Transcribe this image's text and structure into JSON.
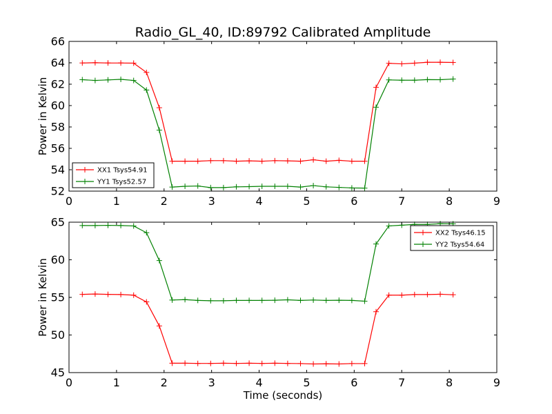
{
  "chart_data": {
    "title": "Radio_GL_40, ID:89792 Calibrated Amplitude",
    "xlabel": "Time (seconds)",
    "colors": {
      "red": "#ff0000",
      "green": "#008000"
    },
    "panels": [
      {
        "type": "line",
        "ylabel": "Power in Kelvin",
        "xlim": [
          0,
          9
        ],
        "ylim": [
          52,
          66
        ],
        "xticks": [
          "0",
          "1",
          "2",
          "3",
          "4",
          "5",
          "6",
          "7",
          "8",
          "9"
        ],
        "yticks": [
          "52",
          "54",
          "56",
          "58",
          "60",
          "62",
          "64",
          "66"
        ],
        "legend_position": "lower-left",
        "x": [
          0.28,
          0.55,
          0.82,
          1.09,
          1.36,
          1.63,
          1.9,
          2.17,
          2.44,
          2.71,
          2.98,
          3.25,
          3.52,
          3.79,
          4.06,
          4.33,
          4.6,
          4.87,
          5.14,
          5.41,
          5.68,
          5.95,
          6.22,
          6.46,
          6.73,
          7.0,
          7.27,
          7.54,
          7.81,
          8.08
        ],
        "series": [
          {
            "name": "XX1 Tsys54.91",
            "color": "#ff0000",
            "values": [
              63.98,
              64.01,
              63.98,
              63.98,
              63.97,
              63.1,
              59.8,
              54.8,
              54.8,
              54.8,
              54.85,
              54.85,
              54.8,
              54.83,
              54.8,
              54.85,
              54.83,
              54.8,
              54.93,
              54.8,
              54.88,
              54.8,
              54.8,
              61.7,
              63.95,
              63.9,
              63.97,
              64.05,
              64.05,
              64.03
            ]
          },
          {
            "name": "YY1 Tsys52.57",
            "color": "#008000",
            "values": [
              62.42,
              62.35,
              62.4,
              62.45,
              62.35,
              61.45,
              57.7,
              52.38,
              52.45,
              52.48,
              52.33,
              52.33,
              52.4,
              52.42,
              52.45,
              52.45,
              52.45,
              52.38,
              52.52,
              52.4,
              52.35,
              52.3,
              52.28,
              59.85,
              62.4,
              62.37,
              62.37,
              62.43,
              62.42,
              62.48
            ]
          }
        ]
      },
      {
        "type": "line",
        "ylabel": "Power in Kelvin",
        "xlabel": "Time (seconds)",
        "xlim": [
          0,
          9
        ],
        "ylim": [
          45,
          65
        ],
        "xticks": [
          "0",
          "1",
          "2",
          "3",
          "4",
          "5",
          "6",
          "7",
          "8",
          "9"
        ],
        "yticks": [
          "45",
          "50",
          "55",
          "60",
          "65"
        ],
        "legend_position": "upper-right",
        "x": [
          0.28,
          0.55,
          0.82,
          1.09,
          1.36,
          1.63,
          1.9,
          2.17,
          2.44,
          2.71,
          2.98,
          3.25,
          3.52,
          3.79,
          4.06,
          4.33,
          4.6,
          4.87,
          5.14,
          5.41,
          5.68,
          5.95,
          6.22,
          6.46,
          6.73,
          7.0,
          7.27,
          7.54,
          7.81,
          8.08
        ],
        "series": [
          {
            "name": "XX2 Tsys46.15",
            "color": "#ff0000",
            "values": [
              55.4,
              55.45,
              55.4,
              55.38,
              55.3,
              54.4,
              51.2,
              46.25,
              46.25,
              46.22,
              46.22,
              46.25,
              46.22,
              46.25,
              46.22,
              46.25,
              46.22,
              46.2,
              46.15,
              46.17,
              46.15,
              46.2,
              46.2,
              53.1,
              55.3,
              55.3,
              55.38,
              55.38,
              55.42,
              55.35
            ]
          },
          {
            "name": "YY2 Tsys54.64",
            "color": "#008000",
            "values": [
              64.55,
              64.55,
              64.58,
              64.55,
              64.5,
              63.6,
              59.9,
              54.65,
              54.7,
              54.6,
              54.55,
              54.55,
              54.6,
              54.6,
              54.6,
              54.62,
              54.68,
              54.6,
              54.65,
              54.6,
              54.62,
              54.6,
              54.5,
              62.1,
              64.5,
              64.6,
              64.7,
              64.7,
              64.8,
              64.78
            ]
          }
        ]
      }
    ]
  }
}
